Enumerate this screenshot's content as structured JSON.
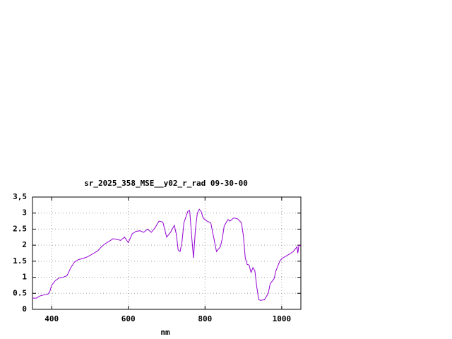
{
  "chart_data": {
    "type": "line",
    "title": "sr_2025_358_MSE__y02_r_rad 09-30-00",
    "xlabel": "nm",
    "xlim": [
      350,
      1050
    ],
    "xticks": [
      400,
      600,
      800,
      1000
    ],
    "ylim": [
      0,
      3.5
    ],
    "yticks": [
      0,
      0.5,
      1,
      1.5,
      2,
      2.5,
      3,
      {
        "value": 3.5,
        "label": "3,5"
      }
    ],
    "grid": true,
    "series": [
      {
        "color": "#9400d3",
        "x": [
          350,
          360,
          370,
          380,
          390,
          395,
          400,
          410,
          420,
          430,
          440,
          450,
          460,
          470,
          480,
          490,
          500,
          510,
          520,
          530,
          540,
          550,
          560,
          570,
          580,
          590,
          600,
          610,
          620,
          630,
          640,
          650,
          660,
          670,
          680,
          690,
          700,
          710,
          720,
          725,
          730,
          735,
          740,
          745,
          755,
          760,
          765,
          770,
          775,
          780,
          785,
          790,
          795,
          805,
          815,
          820,
          830,
          840,
          845,
          850,
          860,
          865,
          875,
          885,
          895,
          900,
          905,
          910,
          915,
          920,
          925,
          930,
          935,
          940,
          945,
          955,
          965,
          970,
          980,
          985,
          995,
          1000,
          1010,
          1020,
          1030,
          1040,
          1042,
          1045,
          1050
        ],
        "values": [
          0.35,
          0.35,
          0.42,
          0.45,
          0.47,
          0.55,
          0.75,
          0.9,
          0.98,
          1.0,
          1.05,
          1.3,
          1.48,
          1.55,
          1.58,
          1.62,
          1.68,
          1.75,
          1.82,
          1.95,
          2.05,
          2.12,
          2.2,
          2.18,
          2.15,
          2.25,
          2.08,
          2.35,
          2.43,
          2.45,
          2.4,
          2.5,
          2.4,
          2.55,
          2.75,
          2.72,
          2.25,
          2.4,
          2.62,
          2.35,
          1.85,
          1.8,
          2.1,
          2.7,
          3.05,
          3.08,
          2.3,
          1.6,
          2.5,
          3.0,
          3.12,
          3.05,
          2.85,
          2.75,
          2.7,
          2.4,
          1.8,
          1.95,
          2.2,
          2.6,
          2.8,
          2.75,
          2.85,
          2.82,
          2.7,
          2.3,
          1.6,
          1.4,
          1.38,
          1.15,
          1.3,
          1.2,
          0.7,
          0.3,
          0.28,
          0.3,
          0.5,
          0.8,
          0.95,
          1.2,
          1.5,
          1.58,
          1.65,
          1.72,
          1.8,
          1.95,
          1.75,
          2.0,
          1.98
        ]
      }
    ]
  }
}
